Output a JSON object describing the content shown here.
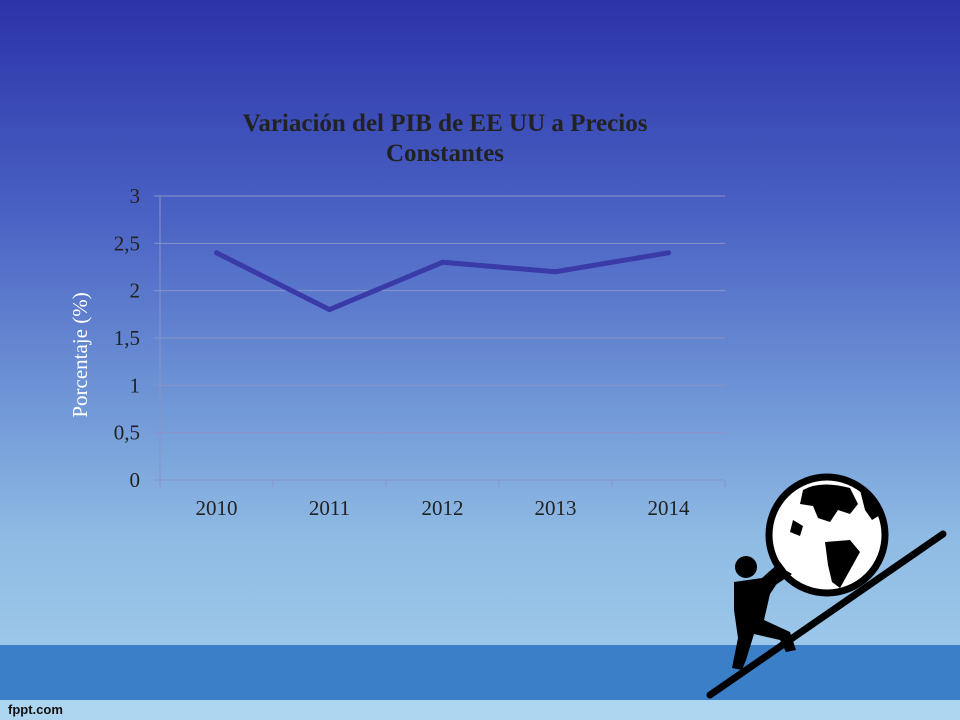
{
  "footer": {
    "brand": "fppt.com"
  },
  "colors": {
    "line": "#3a3aa8",
    "grid": "#8a93c8",
    "title": "#222222",
    "ylabel": "#ffffff"
  },
  "illustration": {
    "icon": "person-pushing-globe-uphill-icon"
  },
  "chart_data": {
    "type": "line",
    "title_lines": [
      "Variación del PIB de EE UU a Precios",
      "Constantes"
    ],
    "xlabel": "",
    "ylabel": "Porcentaje (%)",
    "categories": [
      "2010",
      "2011",
      "2012",
      "2013",
      "2014"
    ],
    "series": [
      {
        "values": [
          2.4,
          1.8,
          2.3,
          2.2,
          2.4
        ]
      }
    ],
    "yticks": [
      0,
      0.5,
      1,
      1.5,
      2,
      2.5,
      3
    ],
    "ytick_labels": [
      "0",
      "0,5",
      "1",
      "1,5",
      "2",
      "2,5",
      "3"
    ],
    "ylim": [
      0,
      3
    ],
    "grid": true,
    "legend": "none"
  }
}
